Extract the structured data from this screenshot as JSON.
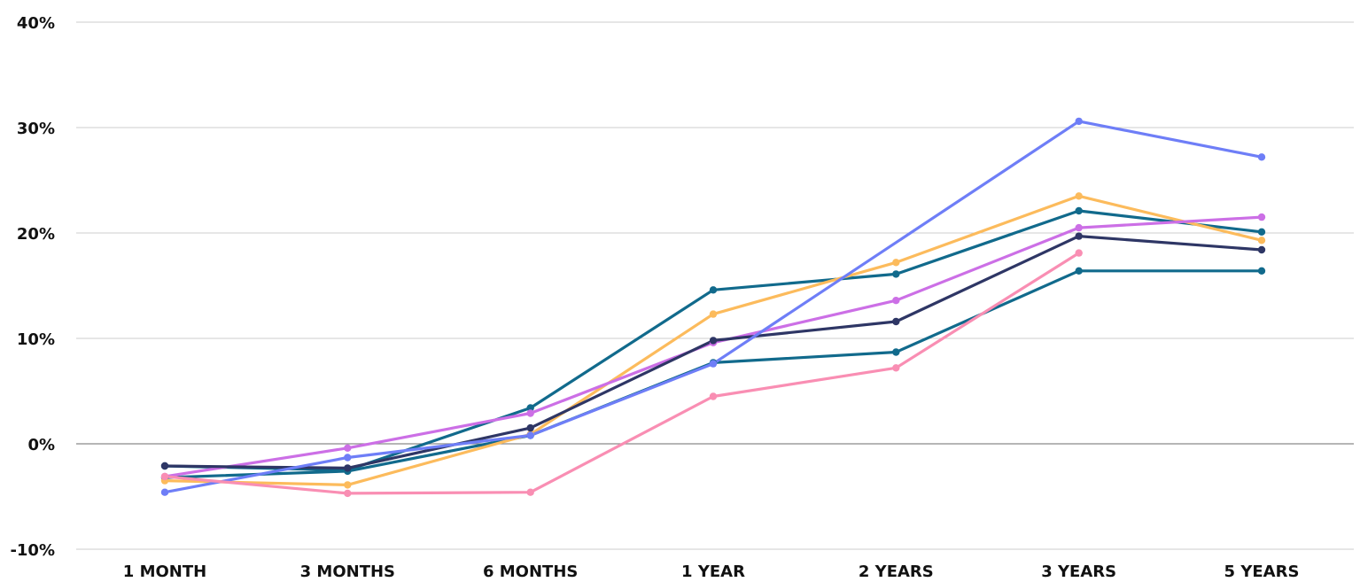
{
  "chart_data": {
    "type": "line",
    "categories": [
      "1 MONTH",
      "3 MONTHS",
      "6 MONTHS",
      "1 YEAR",
      "2 YEARS",
      "3 YEARS",
      "5 YEARS"
    ],
    "ylim": [
      -10,
      40
    ],
    "yticks": [
      -10,
      0,
      10,
      20,
      30,
      40
    ],
    "ytick_labels": [
      "-10%",
      "0%",
      "10%",
      "20%",
      "30%",
      "40%"
    ],
    "grid": true,
    "legend": "none",
    "series": [
      {
        "color": "#116a8c",
        "values": [
          -2.1,
          -2.5,
          3.4,
          14.6,
          16.1,
          22.1,
          20.1
        ]
      },
      {
        "color": "#116a8c",
        "values": [
          -3.2,
          -2.6,
          0.8,
          7.7,
          8.7,
          16.4,
          16.4
        ]
      },
      {
        "color": "#fcbb5c",
        "values": [
          -3.5,
          -3.9,
          0.9,
          12.3,
          17.2,
          23.5,
          19.3
        ]
      },
      {
        "color": "#cc6fe6",
        "values": [
          -3.1,
          -0.4,
          2.9,
          9.6,
          13.6,
          20.5,
          21.5
        ]
      },
      {
        "color": "#2e3665",
        "values": [
          -2.1,
          -2.3,
          1.5,
          9.8,
          11.6,
          19.7,
          18.4
        ]
      },
      {
        "color": "#6e7ef7",
        "values": [
          -4.6,
          -1.3,
          0.8,
          7.6,
          null,
          30.6,
          27.2
        ]
      },
      {
        "color": "#f98eb3",
        "values": [
          -3.1,
          -4.7,
          -4.6,
          4.5,
          7.2,
          18.1,
          null
        ]
      }
    ]
  }
}
